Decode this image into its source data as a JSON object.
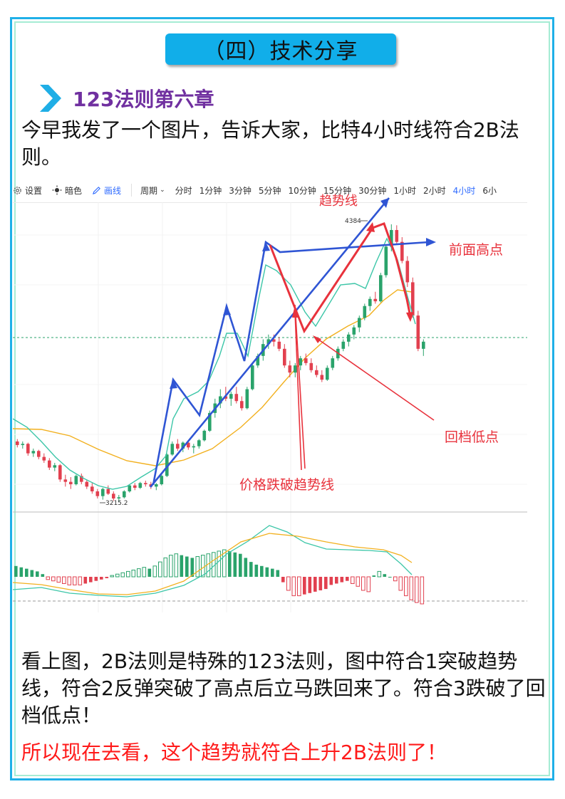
{
  "title": "（四）技术分享",
  "section_heading": "123法则第六章",
  "intro_text": "今早我发了一个图片，告诉大家，比特4小时线符合2B法则。",
  "toolbar": {
    "settings": "设置",
    "dark": "暗色",
    "draw": "画线",
    "period": "周期",
    "periods": [
      "分时",
      "1分钟",
      "3分钟",
      "5分钟",
      "10分钟",
      "15分钟",
      "30分钟",
      "1小时",
      "2小时",
      "4小时",
      "6小"
    ],
    "active_period": "4小时"
  },
  "annotations": {
    "trend_line": "趋势线",
    "previous_high": "前面高点",
    "pullback_low": "回档低点",
    "break_trend": "价格跌破趋势线"
  },
  "price_labels": {
    "high": "4384",
    "low": "3215.2"
  },
  "body_text": "看上图，2B法则是特殊的123法则，图中符合1突破趋势线，符合2反弹突破了高点后立马跌回来了。符合3跌破了回档低点！",
  "conclusion_text": "所以现在去看，这个趋势就符合上升2B法则了！",
  "colors": {
    "up": "#2aa36b",
    "down": "#e2404f",
    "ma_fast": "#3cc6a8",
    "ma_slow": "#f2b01e",
    "annotation_blue": "#2f55d4",
    "annotation_red": "#e8323c"
  },
  "chart_data": {
    "type": "candlestick",
    "timeframe": "4小时",
    "candles": [
      [
        3470,
        3480,
        3445,
        3455
      ],
      [
        3455,
        3470,
        3440,
        3460
      ],
      [
        3460,
        3465,
        3410,
        3420
      ],
      [
        3420,
        3440,
        3405,
        3430
      ],
      [
        3430,
        3435,
        3395,
        3405
      ],
      [
        3405,
        3420,
        3380,
        3390
      ],
      [
        3390,
        3400,
        3350,
        3360
      ],
      [
        3360,
        3380,
        3345,
        3370
      ],
      [
        3370,
        3375,
        3300,
        3310
      ],
      [
        3310,
        3330,
        3280,
        3300
      ],
      [
        3300,
        3320,
        3270,
        3290
      ],
      [
        3290,
        3330,
        3285,
        3325
      ],
      [
        3325,
        3335,
        3290,
        3300
      ],
      [
        3300,
        3310,
        3270,
        3280
      ],
      [
        3280,
        3295,
        3250,
        3260
      ],
      [
        3260,
        3270,
        3230,
        3240
      ],
      [
        3240,
        3275,
        3225,
        3270
      ],
      [
        3270,
        3285,
        3245,
        3250
      ],
      [
        3250,
        3260,
        3220,
        3230
      ],
      [
        3230,
        3245,
        3215,
        3235
      ],
      [
        3235,
        3265,
        3230,
        3260
      ],
      [
        3260,
        3290,
        3255,
        3285
      ],
      [
        3285,
        3295,
        3265,
        3275
      ],
      [
        3275,
        3300,
        3270,
        3295
      ],
      [
        3295,
        3305,
        3280,
        3290
      ],
      [
        3290,
        3300,
        3270,
        3280
      ],
      [
        3280,
        3295,
        3265,
        3290
      ],
      [
        3290,
        3330,
        3285,
        3325
      ],
      [
        3325,
        3420,
        3320,
        3415
      ],
      [
        3415,
        3470,
        3410,
        3460
      ],
      [
        3460,
        3480,
        3430,
        3440
      ],
      [
        3440,
        3470,
        3425,
        3465
      ],
      [
        3465,
        3475,
        3435,
        3445
      ],
      [
        3445,
        3460,
        3420,
        3450
      ],
      [
        3450,
        3480,
        3440,
        3475
      ],
      [
        3475,
        3520,
        3470,
        3515
      ],
      [
        3515,
        3600,
        3510,
        3590
      ],
      [
        3590,
        3650,
        3570,
        3630
      ],
      [
        3630,
        3690,
        3610,
        3660
      ],
      [
        3660,
        3700,
        3640,
        3650
      ],
      [
        3650,
        3680,
        3620,
        3670
      ],
      [
        3670,
        3700,
        3630,
        3640
      ],
      [
        3640,
        3660,
        3600,
        3610
      ],
      [
        3610,
        3700,
        3605,
        3690
      ],
      [
        3690,
        3800,
        3685,
        3790
      ],
      [
        3790,
        3840,
        3780,
        3830
      ],
      [
        3830,
        3900,
        3810,
        3880
      ],
      [
        3880,
        3920,
        3860,
        3900
      ],
      [
        3900,
        3920,
        3870,
        3890
      ],
      [
        3890,
        3910,
        3850,
        3860
      ],
      [
        3860,
        3880,
        3780,
        3790
      ],
      [
        3790,
        3810,
        3740,
        3760
      ],
      [
        3760,
        3800,
        3740,
        3790
      ],
      [
        3790,
        3830,
        3770,
        3820
      ],
      [
        3820,
        3840,
        3790,
        3800
      ],
      [
        3800,
        3820,
        3760,
        3770
      ],
      [
        3770,
        3790,
        3740,
        3750
      ],
      [
        3750,
        3770,
        3720,
        3730
      ],
      [
        3730,
        3790,
        3725,
        3780
      ],
      [
        3780,
        3830,
        3770,
        3820
      ],
      [
        3820,
        3870,
        3810,
        3860
      ],
      [
        3860,
        3900,
        3850,
        3890
      ],
      [
        3890,
        3930,
        3870,
        3920
      ],
      [
        3920,
        3960,
        3900,
        3950
      ],
      [
        3950,
        4000,
        3930,
        3990
      ],
      [
        3990,
        4050,
        3980,
        4040
      ],
      [
        4040,
        4080,
        4020,
        4070
      ],
      [
        4070,
        4100,
        4050,
        4060
      ],
      [
        4060,
        4180,
        4055,
        4170
      ],
      [
        4170,
        4300,
        4160,
        4290
      ],
      [
        4290,
        4384,
        4270,
        4360
      ],
      [
        4360,
        4380,
        4300,
        4310
      ],
      [
        4310,
        4330,
        4220,
        4230
      ],
      [
        4230,
        4250,
        4120,
        4140
      ],
      [
        4140,
        4160,
        3990,
        4000
      ],
      [
        4000,
        4020,
        3850,
        3860
      ],
      [
        3860,
        3900,
        3830,
        3890
      ]
    ],
    "series": [
      {
        "name": "MA"
      },
      {
        "name": "MA"
      }
    ],
    "macd_histogram": [
      0.4,
      0.35,
      0.3,
      0.25,
      0.2,
      0.1,
      -0.1,
      -0.15,
      -0.2,
      -0.25,
      -0.3,
      -0.3,
      -0.3,
      -0.25,
      -0.2,
      -0.15,
      -0.1,
      -0.05,
      0.05,
      0.1,
      0.15,
      0.2,
      0.25,
      0.3,
      0.35,
      0.3,
      0.4,
      0.55,
      0.7,
      0.8,
      0.85,
      0.8,
      0.75,
      0.7,
      0.75,
      0.8,
      0.85,
      0.9,
      0.95,
      1.0,
      0.95,
      0.9,
      0.85,
      0.7,
      0.55,
      0.45,
      0.4,
      0.35,
      0.3,
      0.25,
      -0.2,
      -0.5,
      -0.7,
      -0.7,
      -0.65,
      -0.6,
      -0.55,
      -0.5,
      -0.45,
      -0.3,
      -0.25,
      -0.2,
      -0.15,
      -0.25,
      -0.35,
      -0.5,
      -0.55,
      0.05,
      0.2,
      0.1,
      0.0,
      -0.15,
      -0.5,
      -0.7,
      -0.85,
      -0.95,
      -1.0
    ]
  }
}
